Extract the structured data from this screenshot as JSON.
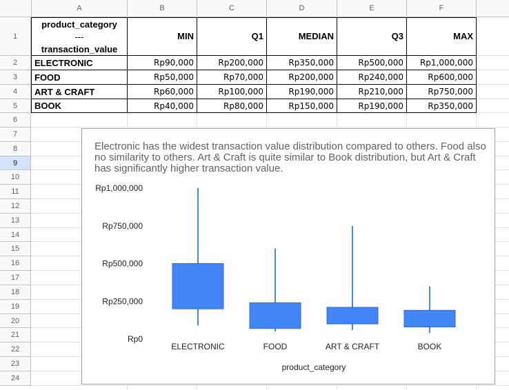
{
  "sheet": {
    "columns": [
      "A",
      "B",
      "C",
      "D",
      "E",
      "F"
    ],
    "row_numbers": [
      "1",
      "2",
      "3",
      "4",
      "5",
      "6",
      "7",
      "8",
      "9",
      "10",
      "11",
      "12",
      "13",
      "14",
      "15",
      "16",
      "17",
      "18",
      "19",
      "20",
      "21",
      "22",
      "23",
      "24"
    ],
    "selected_row": "9",
    "header": {
      "category_line1": "product_category",
      "category_line2": "---",
      "category_line3": "transaction_value",
      "min": "MIN",
      "q1": "Q1",
      "median": "MEDIAN",
      "q3": "Q3",
      "max": "MAX"
    },
    "rows": [
      {
        "category": "ELECTRONIC",
        "min": "Rp90,000",
        "q1": "Rp200,000",
        "median": "Rp350,000",
        "q3": "Rp500,000",
        "max": "Rp1,000,000"
      },
      {
        "category": "FOOD",
        "min": "Rp50,000",
        "q1": "Rp70,000",
        "median": "Rp200,000",
        "q3": "Rp240,000",
        "max": "Rp600,000"
      },
      {
        "category": "ART & CRAFT",
        "min": "Rp60,000",
        "q1": "Rp100,000",
        "median": "Rp190,000",
        "q3": "Rp210,000",
        "max": "Rp750,000"
      },
      {
        "category": "BOOK",
        "min": "Rp40,000",
        "q1": "Rp80,000",
        "median": "Rp150,000",
        "q3": "Rp190,000",
        "max": "Rp350,000"
      }
    ]
  },
  "chart_data": {
    "type": "candlestick",
    "subtitle": "Electronic has the widest transaction value distribution compared to others. Food also no similarity to others. Art & Craft is quite similar to Book distribution, but Art & Craft has significantly higher transaction value.",
    "xlabel": "product_category",
    "ylabel": "",
    "ylim": [
      0,
      1000000
    ],
    "y_ticks": [
      0,
      250000,
      500000,
      750000,
      1000000
    ],
    "y_tick_labels": [
      "Rp0",
      "Rp250,000",
      "Rp500,000",
      "Rp750,000",
      "Rp1,000,000"
    ],
    "categories": [
      "ELECTRONIC",
      "FOOD",
      "ART & CRAFT",
      "BOOK"
    ],
    "series": [
      {
        "low": [
          90000,
          50000,
          60000,
          40000
        ],
        "open": [
          200000,
          70000,
          100000,
          80000
        ],
        "close": [
          500000,
          240000,
          210000,
          190000
        ],
        "high": [
          1000000,
          600000,
          750000,
          350000
        ]
      }
    ],
    "color": "#4285f4",
    "grid": false,
    "legend": "none"
  }
}
